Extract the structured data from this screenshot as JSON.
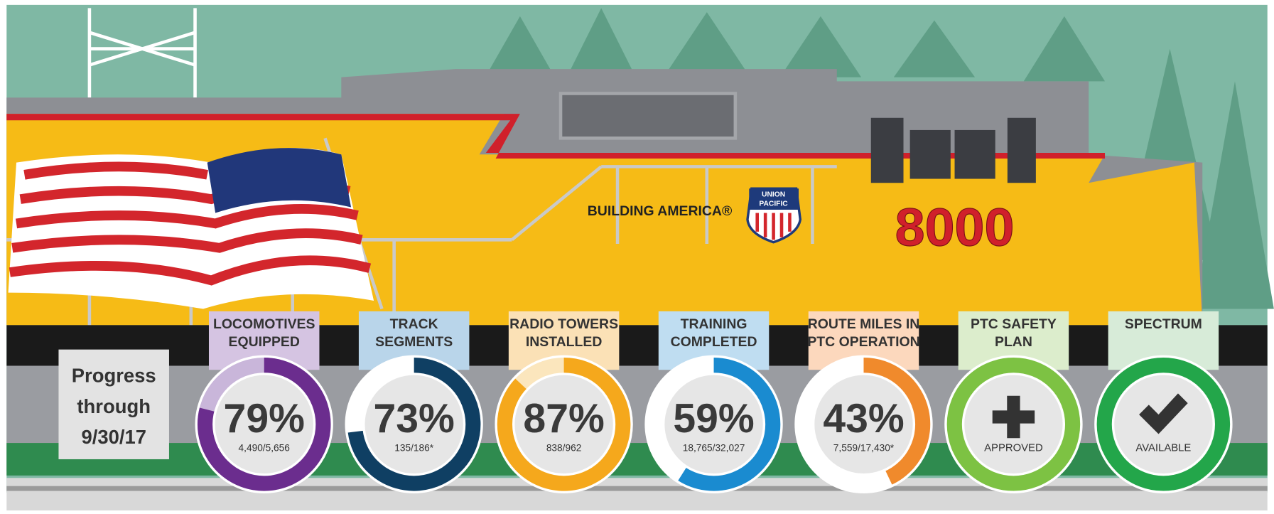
{
  "locomotive": {
    "slogan": "BUILDING AMERICA®",
    "logo_top": "UNION",
    "logo_bottom": "PACIFIC",
    "number": "8000"
  },
  "progress": {
    "lines": [
      "Progress",
      "through",
      "9/30/17"
    ]
  },
  "items": [
    {
      "title": [
        "LOCOMOTIVES",
        "EQUIPPED"
      ],
      "percent": 79,
      "percent_label": "79%",
      "detail": "4,490/5,656"
    },
    {
      "title": [
        "TRACK",
        "SEGMENTS"
      ],
      "percent": 73,
      "percent_label": "73%",
      "detail": "135/186*"
    },
    {
      "title": [
        "RADIO TOWERS",
        "INSTALLED"
      ],
      "percent": 87,
      "percent_label": "87%",
      "detail": "838/962"
    },
    {
      "title": [
        "TRAINING",
        "COMPLETED"
      ],
      "percent": 59,
      "percent_label": "59%",
      "detail": "18,765/32,027"
    },
    {
      "title": [
        "ROUTE MILES IN",
        "PTC OPERATION"
      ],
      "percent": 43,
      "percent_label": "43%",
      "detail": "7,559/17,430*"
    },
    {
      "title": [
        "PTC SAFETY",
        "PLAN"
      ],
      "status": "APPROVED"
    },
    {
      "title": [
        "SPECTRUM"
      ],
      "status": "AVAILABLE"
    }
  ]
}
